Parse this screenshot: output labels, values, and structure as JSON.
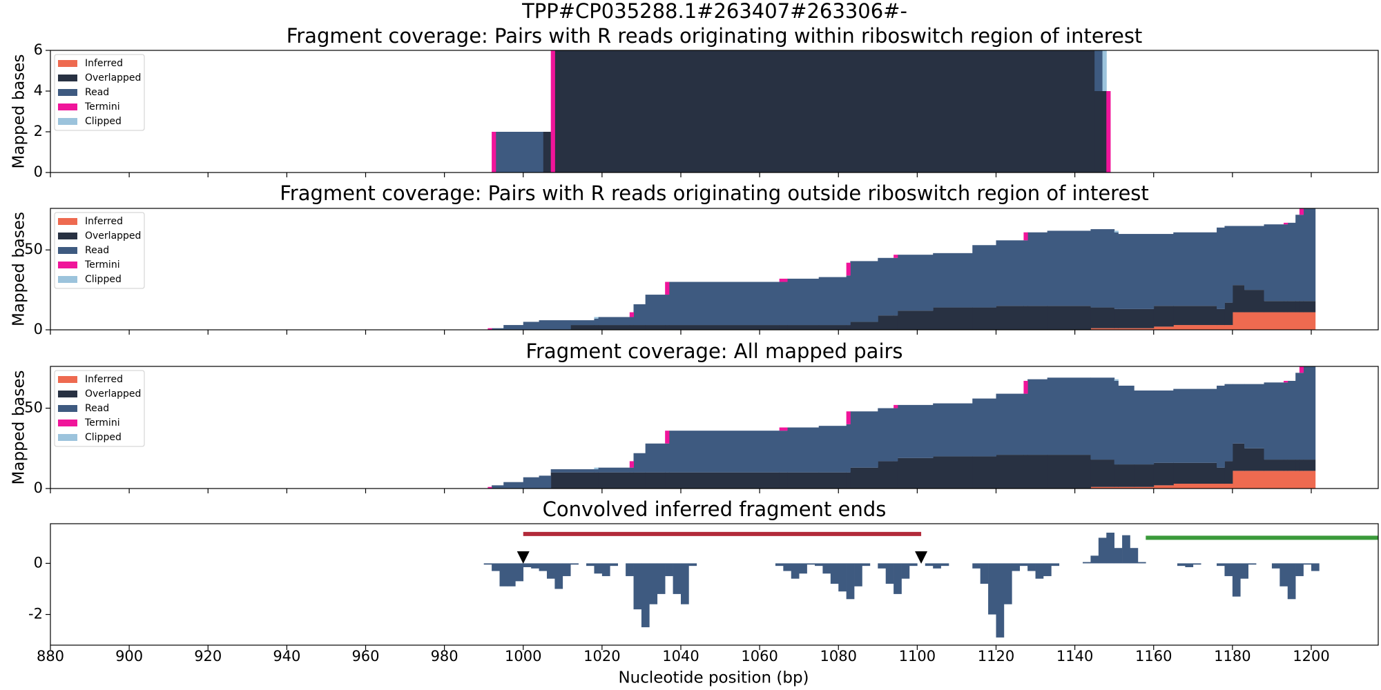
{
  "title": "TPP#CP035288.1#263407#263306#-",
  "chart_data": [
    {
      "type": "stacked-step",
      "title": "Fragment coverage: Pairs with R reads originating within riboswitch region of interest",
      "ylabel": "Mapped bases",
      "legend": "upper left",
      "xlim": [
        880,
        1217
      ],
      "xticks": [
        880,
        900,
        920,
        940,
        960,
        980,
        1000,
        1020,
        1040,
        1060,
        1080,
        1100,
        1120,
        1140,
        1160,
        1180,
        1200
      ],
      "ylim": [
        0,
        6
      ],
      "yticks": [
        0,
        2,
        4,
        6
      ],
      "x": [
        992,
        993,
        1005,
        1007,
        1008,
        1145,
        1147,
        1148,
        1149
      ],
      "series": [
        {
          "name": "Inferred",
          "color": "#ee6a50",
          "values": [
            0,
            0,
            0,
            0,
            0,
            0,
            0,
            0,
            null
          ]
        },
        {
          "name": "Overlapped",
          "color": "#283142",
          "values": [
            0,
            0,
            2,
            0,
            6,
            4,
            4,
            0,
            null
          ]
        },
        {
          "name": "Read",
          "color": "#3e5a80",
          "values": [
            0,
            2,
            0,
            0,
            0,
            2,
            0,
            0,
            null
          ]
        },
        {
          "name": "Termini",
          "color": "#f0159a",
          "values": [
            2,
            0,
            0,
            6,
            0,
            0,
            0,
            4,
            null
          ]
        },
        {
          "name": "Clipped",
          "color": "#9cc3dc",
          "values": [
            0,
            0,
            0,
            0,
            0,
            0,
            2,
            0,
            null
          ]
        }
      ]
    },
    {
      "type": "stacked-step",
      "title": "Fragment coverage: Pairs with R reads originating outside riboswitch region of interest",
      "ylabel": "Mapped bases",
      "legend": "upper left",
      "xlim": [
        880,
        1217
      ],
      "xticks": [
        880,
        900,
        920,
        940,
        960,
        980,
        1000,
        1020,
        1040,
        1060,
        1080,
        1100,
        1120,
        1140,
        1160,
        1180,
        1200
      ],
      "ylim": [
        0,
        76
      ],
      "yticks": [
        0,
        50
      ],
      "x": [
        991,
        992,
        995,
        1000,
        1004,
        1012,
        1018,
        1019,
        1027,
        1028,
        1031,
        1036,
        1037,
        1065,
        1067,
        1075,
        1082,
        1083,
        1090,
        1094,
        1095,
        1104,
        1114,
        1120,
        1127,
        1128,
        1133,
        1144,
        1150,
        1151,
        1160,
        1165,
        1176,
        1178,
        1180,
        1183,
        1188,
        1193,
        1194,
        1196,
        1197,
        1198,
        1201
      ],
      "series": [
        {
          "name": "Inferred",
          "color": "#ee6a50",
          "values": [
            0,
            0,
            0,
            0,
            0,
            0,
            0,
            0,
            0,
            0,
            0,
            0,
            0,
            0,
            0,
            0,
            0,
            0,
            0,
            0,
            0,
            0,
            0,
            0,
            0,
            0,
            0,
            1,
            1,
            1,
            2,
            3,
            3,
            3,
            11,
            11,
            11,
            11,
            11,
            11,
            11,
            11,
            null
          ]
        },
        {
          "name": "Overlapped",
          "color": "#283142",
          "values": [
            0,
            0,
            0,
            0,
            0,
            3,
            3,
            3,
            3,
            3,
            3,
            3,
            3,
            3,
            3,
            3,
            3,
            5,
            9,
            9,
            12,
            14,
            14,
            15,
            15,
            15,
            15,
            13,
            12,
            12,
            13,
            12,
            10,
            14,
            17,
            14,
            7,
            7,
            7,
            7,
            7,
            7,
            null
          ]
        },
        {
          "name": "Read",
          "color": "#3e5a80",
          "values": [
            0,
            1,
            3,
            5,
            6,
            3,
            4,
            5,
            5,
            13,
            19,
            19,
            27,
            27,
            29,
            30,
            31,
            38,
            36,
            36,
            35,
            34,
            39,
            41,
            41,
            46,
            47,
            49,
            48,
            47,
            45,
            46,
            51,
            48,
            37,
            40,
            48,
            48,
            49,
            54,
            54,
            58,
            null
          ]
        },
        {
          "name": "Termini",
          "color": "#f0159a",
          "values": [
            1,
            0,
            0,
            0,
            0,
            0,
            0,
            0,
            3,
            0,
            0,
            8,
            0,
            2,
            0,
            0,
            8,
            0,
            0,
            2,
            0,
            0,
            0,
            0,
            5,
            0,
            0,
            0,
            0,
            0,
            0,
            0,
            0,
            0,
            0,
            0,
            0,
            1,
            0,
            0,
            4,
            0,
            null
          ]
        },
        {
          "name": "Clipped",
          "color": "#9cc3dc",
          "values": [
            0,
            0,
            0,
            0,
            0,
            0,
            1,
            0,
            0,
            0,
            0,
            0,
            0,
            0,
            0,
            0,
            0,
            0,
            0,
            0,
            0,
            0,
            0,
            0,
            0,
            0,
            0,
            0,
            1,
            0,
            0,
            0,
            0,
            0,
            0,
            0,
            0,
            0,
            0,
            0,
            0,
            0,
            null
          ]
        }
      ]
    },
    {
      "type": "stacked-step",
      "title": "Fragment coverage: All mapped pairs",
      "ylabel": "Mapped bases",
      "legend": "upper left",
      "xlim": [
        880,
        1217
      ],
      "xticks": [
        880,
        900,
        920,
        940,
        960,
        980,
        1000,
        1020,
        1040,
        1060,
        1080,
        1100,
        1120,
        1140,
        1160,
        1180,
        1200
      ],
      "ylim": [
        0,
        76
      ],
      "yticks": [
        0,
        50
      ],
      "x": [
        991,
        992,
        995,
        1000,
        1004,
        1007,
        1018,
        1019,
        1027,
        1028,
        1031,
        1036,
        1037,
        1065,
        1067,
        1075,
        1082,
        1083,
        1090,
        1094,
        1095,
        1104,
        1114,
        1120,
        1127,
        1128,
        1133,
        1144,
        1150,
        1151,
        1155,
        1160,
        1165,
        1176,
        1178,
        1180,
        1183,
        1188,
        1193,
        1194,
        1196,
        1197,
        1198,
        1201
      ],
      "series": [
        {
          "name": "Inferred",
          "color": "#ee6a50",
          "values": [
            0,
            0,
            0,
            0,
            0,
            0,
            0,
            0,
            0,
            0,
            0,
            0,
            0,
            0,
            0,
            0,
            0,
            0,
            0,
            0,
            0,
            0,
            0,
            0,
            0,
            0,
            0,
            1,
            1,
            1,
            1,
            2,
            3,
            3,
            3,
            11,
            11,
            11,
            11,
            11,
            11,
            11,
            11,
            null
          ]
        },
        {
          "name": "Overlapped",
          "color": "#283142",
          "values": [
            0,
            0,
            0,
            0,
            0,
            10,
            10,
            10,
            10,
            10,
            10,
            10,
            10,
            10,
            10,
            10,
            10,
            13,
            17,
            17,
            19,
            20,
            20,
            21,
            21,
            21,
            21,
            17,
            14,
            14,
            14,
            14,
            13,
            10,
            14,
            17,
            14,
            7,
            7,
            7,
            7,
            7,
            7,
            null
          ]
        },
        {
          "name": "Read",
          "color": "#3e5a80",
          "values": [
            0,
            2,
            4,
            7,
            8,
            2,
            2,
            3,
            3,
            12,
            18,
            18,
            26,
            26,
            28,
            29,
            30,
            35,
            33,
            33,
            33,
            33,
            36,
            38,
            38,
            47,
            48,
            51,
            52,
            49,
            46,
            45,
            46,
            51,
            48,
            37,
            40,
            48,
            48,
            49,
            54,
            54,
            58,
            null
          ]
        },
        {
          "name": "Termini",
          "color": "#f0159a",
          "values": [
            1,
            0,
            0,
            0,
            0,
            0,
            0,
            0,
            4,
            0,
            0,
            8,
            0,
            2,
            0,
            0,
            8,
            0,
            0,
            2,
            0,
            0,
            0,
            0,
            8,
            0,
            0,
            0,
            0,
            0,
            0,
            0,
            0,
            0,
            0,
            0,
            0,
            0,
            1,
            0,
            0,
            4,
            0,
            null
          ]
        },
        {
          "name": "Clipped",
          "color": "#9cc3dc",
          "values": [
            0,
            0,
            0,
            0,
            0,
            0,
            1,
            0,
            0,
            0,
            0,
            0,
            0,
            0,
            0,
            0,
            0,
            0,
            0,
            0,
            0,
            0,
            0,
            0,
            0,
            0,
            0,
            0,
            1,
            0,
            0,
            0,
            0,
            0,
            0,
            0,
            0,
            0,
            0,
            0,
            0,
            0,
            0,
            null
          ]
        }
      ]
    },
    {
      "type": "bar",
      "title": "Convolved inferred fragment ends",
      "xlabel": "Nucleotide position (bp)",
      "color": "#3e5a80",
      "xlim": [
        880,
        1217
      ],
      "xticks": [
        880,
        900,
        920,
        940,
        960,
        980,
        1000,
        1020,
        1040,
        1060,
        1080,
        1100,
        1120,
        1140,
        1160,
        1180,
        1200
      ],
      "ylim": [
        -3.2,
        1.55
      ],
      "yticks": [
        -2,
        0
      ],
      "x": [
        990,
        992,
        994,
        996,
        998,
        1000,
        1002,
        1004,
        1006,
        1008,
        1010,
        1012,
        1014,
        1016,
        1018,
        1020,
        1022,
        1024,
        1026,
        1028,
        1030,
        1032,
        1034,
        1036,
        1038,
        1040,
        1042,
        1044,
        1046,
        1048,
        1050,
        1052,
        1054,
        1056,
        1058,
        1060,
        1062,
        1064,
        1066,
        1068,
        1070,
        1072,
        1074,
        1076,
        1078,
        1080,
        1082,
        1084,
        1086,
        1088,
        1090,
        1092,
        1094,
        1096,
        1098,
        1100,
        1102,
        1104,
        1106,
        1108,
        1110,
        1112,
        1114,
        1116,
        1118,
        1120,
        1122,
        1124,
        1126,
        1128,
        1130,
        1132,
        1134,
        1136,
        1138,
        1140,
        1142,
        1144,
        1146,
        1148,
        1150,
        1152,
        1154,
        1156,
        1158,
        1160,
        1162,
        1164,
        1166,
        1168,
        1170,
        1172,
        1174,
        1176,
        1178,
        1180,
        1182,
        1184,
        1186,
        1188,
        1190,
        1192,
        1194,
        1196,
        1198,
        1200
      ],
      "values": [
        -0.05,
        -0.3,
        -0.9,
        -0.9,
        -0.7,
        -0.15,
        -0.2,
        -0.3,
        -0.6,
        -1.0,
        -0.5,
        -0.05,
        0,
        -0.1,
        -0.4,
        -0.5,
        -0.1,
        0,
        -0.5,
        -1.8,
        -2.5,
        -1.6,
        -1.2,
        -0.5,
        -1.2,
        -1.6,
        -0.1,
        0,
        0,
        0,
        0,
        0,
        0,
        0,
        0,
        0,
        0,
        -0.1,
        -0.3,
        -0.6,
        -0.4,
        -0.05,
        -0.1,
        -0.4,
        -0.8,
        -1.1,
        -1.4,
        -0.9,
        -0.1,
        0,
        -0.2,
        -0.8,
        -1.2,
        -0.6,
        -0.1,
        0,
        -0.1,
        -0.2,
        -0.1,
        0,
        0,
        0,
        -0.2,
        -0.8,
        -2.0,
        -2.9,
        -1.6,
        -0.3,
        -0.1,
        -0.3,
        -0.6,
        -0.5,
        -0.1,
        0,
        0,
        0,
        0.05,
        0.3,
        1.0,
        1.2,
        0.6,
        1.1,
        0.6,
        0.05,
        0,
        0,
        0,
        0,
        -0.1,
        -0.15,
        -0.05,
        0,
        0,
        -0.1,
        -0.5,
        -1.3,
        -0.6,
        -0.05,
        0,
        0,
        -0.2,
        -0.9,
        -1.4,
        -0.5,
        -0.05,
        -0.3
      ],
      "segments": [
        {
          "x": [
            1000,
            1101
          ],
          "y": 1.15,
          "color": "#b22a3a"
        },
        {
          "x": [
            1158,
            1217
          ],
          "y": 1.0,
          "color": "#3a9a3a"
        }
      ],
      "markers": [
        {
          "x": 1000,
          "y": 0.2
        },
        {
          "x": 1101,
          "y": 0.2
        }
      ]
    }
  ]
}
